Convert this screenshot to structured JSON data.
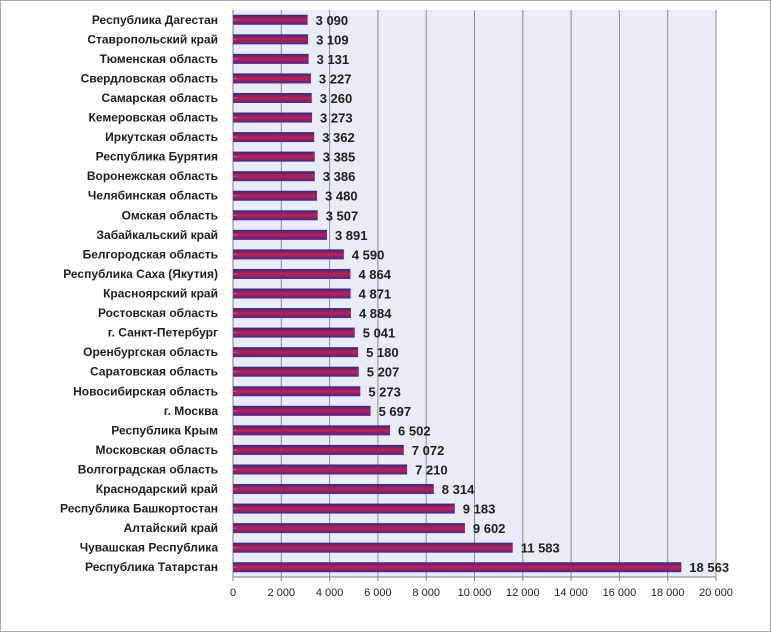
{
  "chart_data": {
    "type": "bar",
    "orientation": "horizontal",
    "title": "",
    "xlabel": "",
    "ylabel": "",
    "xlim": [
      0,
      20000
    ],
    "xticks": [
      0,
      2000,
      4000,
      6000,
      8000,
      10000,
      12000,
      14000,
      16000,
      18000,
      20000
    ],
    "xtick_labels": [
      "0",
      "2 000",
      "4 000",
      "6 000",
      "8 000",
      "10 000",
      "12 000",
      "14 000",
      "16 000",
      "18 000",
      "20 000"
    ],
    "grid": true,
    "legend": "none",
    "bar_colors": {
      "top": "#1f2f8f",
      "middle": "#d01b45",
      "bottom": "#3b2c9b"
    },
    "plot_background": "#e8ecf7",
    "categories": [
      "Республика Дагестан",
      "Ставропольский край",
      "Тюменская область",
      "Свердловская область",
      "Самарская область",
      "Кемеровская область",
      "Иркутская область",
      "Республика Бурятия",
      "Воронежская область",
      "Челябинская область",
      "Омская область",
      "Забайкальский край",
      "Белгородская область",
      "Республика Саха (Якутия)",
      "Красноярский край",
      "Ростовская область",
      "г. Санкт-Петербург",
      "Оренбургская область",
      "Саратовская область",
      "Новосибирская область",
      "г. Москва",
      "Республика Крым",
      "Московская область",
      "Волгоградская область",
      "Краснодарский край",
      "Республика Башкортостан",
      "Алтайский край",
      "Чувашская Республика",
      "Республика Татарстан"
    ],
    "values": [
      3090,
      3109,
      3131,
      3227,
      3260,
      3273,
      3362,
      3385,
      3386,
      3480,
      3507,
      3891,
      4590,
      4864,
      4871,
      4884,
      5041,
      5180,
      5207,
      5273,
      5697,
      6502,
      7072,
      7210,
      8314,
      9183,
      9602,
      11583,
      18563
    ],
    "value_labels": [
      "3 090",
      "3 109",
      "3 131",
      "3 227",
      "3 260",
      "3 273",
      "3 362",
      "3 385",
      "3 386",
      "3 480",
      "3 507",
      "3 891",
      "4 590",
      "4 864",
      "4 871",
      "4 884",
      "5 041",
      "5 180",
      "5 207",
      "5 273",
      "5 697",
      "6 502",
      "7 072",
      "7 210",
      "8 314",
      "9 183",
      "9 602",
      "11 583",
      "18 563"
    ]
  }
}
